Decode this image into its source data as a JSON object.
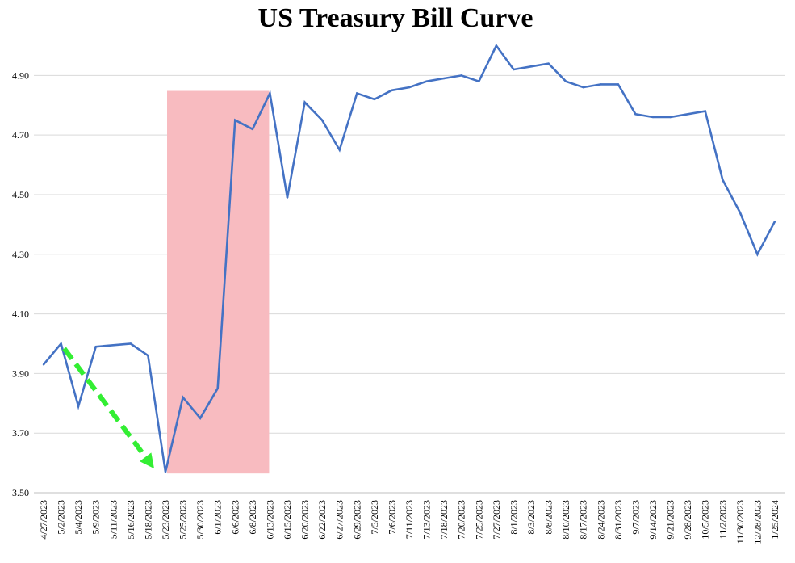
{
  "chart_data": {
    "type": "line",
    "title": "US Treasury Bill Curve",
    "xlabel": "",
    "ylabel": "",
    "ylim": [
      3.5,
      5.05
    ],
    "yticks": [
      "3.50",
      "3.70",
      "3.90",
      "4.10",
      "4.30",
      "4.50",
      "4.70",
      "4.90"
    ],
    "grid": true,
    "line_color": "#4472C4",
    "categories": [
      "4/27/2023",
      "5/2/2023",
      "5/4/2023",
      "5/9/2023",
      "5/11/2023",
      "5/16/2023",
      "5/18/2023",
      "5/23/2023",
      "5/25/2023",
      "5/30/2023",
      "6/1/2023",
      "6/6/2023",
      "6/8/2023",
      "6/13/2023",
      "6/15/2023",
      "6/20/2023",
      "6/22/2023",
      "6/27/2023",
      "6/29/2023",
      "7/5/2023",
      "7/6/2023",
      "7/11/2023",
      "7/13/2023",
      "7/18/2023",
      "7/20/2023",
      "7/25/2023",
      "7/27/2023",
      "8/1/2023",
      "8/3/2023",
      "8/8/2023",
      "8/10/2023",
      "8/17/2023",
      "8/24/2023",
      "8/31/2023",
      "9/7/2023",
      "9/14/2023",
      "9/21/2023",
      "9/28/2023",
      "10/5/2023",
      "11/2/2023",
      "11/30/2023",
      "12/28/2023",
      "1/25/2024"
    ],
    "values": [
      3.93,
      4.0,
      3.79,
      3.99,
      3.995,
      4.0,
      3.96,
      3.57,
      3.82,
      3.75,
      3.85,
      4.75,
      4.72,
      4.84,
      4.49,
      4.81,
      4.75,
      4.65,
      4.84,
      4.82,
      4.85,
      4.86,
      4.88,
      4.89,
      4.9,
      4.88,
      5.0,
      4.92,
      4.93,
      4.94,
      4.88,
      4.86,
      4.87,
      4.87,
      4.77,
      4.76,
      4.76,
      4.77,
      4.78,
      4.55,
      4.44,
      4.3,
      4.41
    ],
    "annotations": [
      {
        "type": "highlight-band",
        "from": "5/23/2023",
        "to": "6/13/2023",
        "color": "#F8BBC0"
      },
      {
        "type": "arrow",
        "from": "5/2/2023",
        "to": "5/23/2023",
        "style": "dashed",
        "color": "#33EE33"
      }
    ]
  }
}
